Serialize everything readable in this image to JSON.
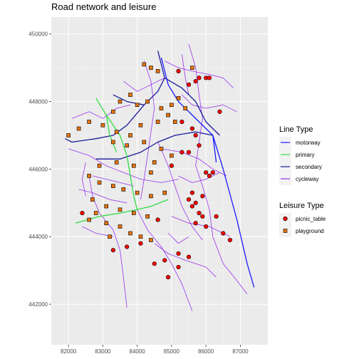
{
  "title": "Road network and leisure",
  "axes": {
    "x_ticks": [
      82000,
      83000,
      84000,
      85000,
      86000,
      87000
    ],
    "y_ticks": [
      442000,
      444000,
      446000,
      448000,
      450000
    ],
    "x_range": [
      81500,
      87800
    ],
    "y_range": [
      440800,
      450500
    ]
  },
  "legend": {
    "line_title": "Line Type",
    "line_items": [
      {
        "label": "motorway",
        "color": "#1a1aff"
      },
      {
        "label": "primary",
        "color": "#33dd44"
      },
      {
        "label": "secondary",
        "color": "#1a1a99"
      },
      {
        "label": "cycleway",
        "color": "#9933ee"
      }
    ],
    "point_title": "Leisure Type",
    "point_items": [
      {
        "label": "picnic_table",
        "color": "#ff0000",
        "shape": "circle"
      },
      {
        "label": "playground",
        "color": "#e8730c",
        "shape": "square"
      }
    ]
  },
  "chart_data": {
    "type": "map",
    "title": "Road network and leisure",
    "xlim": [
      81500,
      87800
    ],
    "ylim": [
      440800,
      450500
    ],
    "grid": true,
    "legend_position": "right",
    "lines": {
      "motorway": [
        [
          [
            84700,
            449300
          ],
          [
            84900,
            448500
          ],
          [
            85200,
            448000
          ],
          [
            85600,
            447600
          ],
          [
            86200,
            447000
          ],
          [
            86500,
            446000
          ],
          [
            86900,
            444500
          ],
          [
            87200,
            443200
          ],
          [
            87400,
            442500
          ]
        ],
        [
          [
            86200,
            447000
          ],
          [
            86300,
            446200
          ]
        ]
      ],
      "primary": [
        [
          [
            82800,
            448100
          ],
          [
            83100,
            447600
          ],
          [
            83500,
            447000
          ],
          [
            83700,
            446400
          ],
          [
            83800,
            445800
          ],
          [
            83900,
            445200
          ],
          [
            84000,
            444800
          ],
          [
            84400,
            444900
          ],
          [
            84900,
            445100
          ]
        ],
        [
          [
            84000,
            444800
          ],
          [
            83500,
            444700
          ],
          [
            82900,
            444600
          ],
          [
            82200,
            444400
          ]
        ],
        [
          [
            83100,
            447600
          ],
          [
            83200,
            447000
          ],
          [
            83400,
            446500
          ]
        ]
      ],
      "secondary": [
        [
          [
            84600,
            449500
          ],
          [
            84800,
            448700
          ],
          [
            84600,
            448300
          ],
          [
            84200,
            447900
          ],
          [
            83700,
            447300
          ],
          [
            83300,
            447000
          ],
          [
            82800,
            446900
          ],
          [
            82100,
            446800
          ],
          [
            81900,
            446900
          ]
        ],
        [
          [
            84800,
            448700
          ],
          [
            85300,
            448400
          ],
          [
            85700,
            448000
          ],
          [
            86000,
            447400
          ],
          [
            86400,
            447000
          ]
        ],
        [
          [
            82800,
            446300
          ],
          [
            83500,
            446300
          ],
          [
            84100,
            446500
          ],
          [
            84600,
            446800
          ],
          [
            85100,
            447000
          ],
          [
            85700,
            447100
          ],
          [
            86200,
            447000
          ]
        ],
        [
          [
            83300,
            448200
          ],
          [
            83700,
            448000
          ],
          [
            84200,
            447900
          ]
        ]
      ],
      "cycleway": [
        [
          [
            85500,
            449700
          ],
          [
            85700,
            449000
          ],
          [
            85800,
            448200
          ],
          [
            85900,
            447500
          ],
          [
            85800,
            446800
          ],
          [
            85700,
            446100
          ],
          [
            85900,
            445500
          ],
          [
            86100,
            444800
          ],
          [
            86200,
            444000
          ],
          [
            86500,
            443200
          ],
          [
            86900,
            442700
          ],
          [
            87200,
            442300
          ]
        ],
        [
          [
            84800,
            449200
          ],
          [
            85200,
            449000
          ],
          [
            85600,
            448900
          ],
          [
            86100,
            448800
          ],
          [
            86500,
            448700
          ],
          [
            86800,
            448400
          ]
        ],
        [
          [
            85300,
            449400
          ],
          [
            85400,
            448700
          ],
          [
            85500,
            448200
          ]
        ],
        [
          [
            84200,
            449200
          ],
          [
            84400,
            448600
          ],
          [
            84500,
            447800
          ],
          [
            84400,
            447100
          ],
          [
            84300,
            446400
          ],
          [
            84200,
            445700
          ],
          [
            84100,
            445100
          ]
        ],
        [
          [
            82100,
            447500
          ],
          [
            82600,
            447700
          ],
          [
            83000,
            447500
          ],
          [
            83400,
            447800
          ],
          [
            83800,
            447900
          ]
        ],
        [
          [
            82000,
            446600
          ],
          [
            82600,
            446400
          ],
          [
            83100,
            446100
          ],
          [
            83600,
            445900
          ],
          [
            84100,
            445700
          ],
          [
            84700,
            445600
          ],
          [
            85200,
            445700
          ]
        ],
        [
          [
            84600,
            446800
          ],
          [
            84900,
            446100
          ],
          [
            85100,
            445500
          ],
          [
            85300,
            444900
          ],
          [
            85600,
            444300
          ],
          [
            85900,
            443900
          ]
        ],
        [
          [
            82600,
            445800
          ],
          [
            82700,
            445200
          ],
          [
            82900,
            444700
          ],
          [
            83300,
            444200
          ],
          [
            83500,
            443600
          ],
          [
            83600,
            442800
          ],
          [
            83700,
            441900
          ]
        ],
        [
          [
            84000,
            444800
          ],
          [
            84300,
            444200
          ],
          [
            84700,
            443700
          ],
          [
            85000,
            443200
          ],
          [
            85300,
            442600
          ],
          [
            85600,
            441800
          ]
        ],
        [
          [
            84500,
            443800
          ],
          [
            84900,
            443500
          ],
          [
            85400,
            443300
          ],
          [
            86000,
            443100
          ],
          [
            86300,
            442800
          ]
        ],
        [
          [
            82300,
            445400
          ],
          [
            82700,
            445300
          ],
          [
            83200,
            445100
          ],
          [
            83700,
            445000
          ]
        ],
        [
          [
            82400,
            444300
          ],
          [
            82800,
            444100
          ],
          [
            83300,
            444000
          ]
        ],
        [
          [
            85000,
            444600
          ],
          [
            85500,
            444400
          ],
          [
            86100,
            444300
          ],
          [
            86700,
            444000
          ]
        ],
        [
          [
            84700,
            446600
          ],
          [
            85300,
            446500
          ],
          [
            85800,
            446300
          ],
          [
            86200,
            446000
          ],
          [
            86600,
            445800
          ]
        ],
        [
          [
            85300,
            448200
          ],
          [
            85600,
            447900
          ],
          [
            86000,
            447800
          ],
          [
            86500,
            447900
          ],
          [
            86900,
            447700
          ]
        ],
        [
          [
            83600,
            448600
          ],
          [
            84000,
            448300
          ],
          [
            84400,
            448500
          ],
          [
            84800,
            448700
          ]
        ],
        [
          [
            82700,
            445800
          ],
          [
            83100,
            445700
          ],
          [
            83500,
            445600
          ],
          [
            83900,
            445500
          ]
        ],
        [
          [
            85200,
            445800
          ],
          [
            85600,
            445600
          ],
          [
            86000,
            445700
          ],
          [
            86400,
            445900
          ]
        ],
        [
          [
            82500,
            446200
          ],
          [
            82400,
            445700
          ],
          [
            82500,
            445200
          ]
        ],
        [
          [
            84900,
            444100
          ],
          [
            85200,
            443800
          ],
          [
            85500,
            444000
          ]
        ]
      ]
    },
    "points": {
      "picnic_table": [
        [
          85200,
          448900
        ],
        [
          85800,
          448700
        ],
        [
          86000,
          448700
        ],
        [
          86100,
          448700
        ],
        [
          85500,
          448500
        ],
        [
          85700,
          448600
        ],
        [
          86400,
          447700
        ],
        [
          85300,
          447400
        ],
        [
          85600,
          447200
        ],
        [
          85700,
          447000
        ],
        [
          85300,
          446500
        ],
        [
          85500,
          446500
        ],
        [
          85800,
          446700
        ],
        [
          86000,
          445900
        ],
        [
          86100,
          445800
        ],
        [
          86200,
          445900
        ],
        [
          85600,
          445300
        ],
        [
          85500,
          445100
        ],
        [
          85700,
          445000
        ],
        [
          85600,
          444900
        ],
        [
          85800,
          444700
        ],
        [
          85900,
          444600
        ],
        [
          85700,
          444400
        ],
        [
          86000,
          444300
        ],
        [
          86300,
          444600
        ],
        [
          86500,
          444100
        ],
        [
          86700,
          443900
        ],
        [
          82400,
          444700
        ],
        [
          83300,
          443600
        ],
        [
          83700,
          443700
        ],
        [
          84100,
          443800
        ],
        [
          84800,
          443300
        ],
        [
          85200,
          443500
        ],
        [
          85500,
          443400
        ],
        [
          85200,
          443100
        ],
        [
          84500,
          443200
        ],
        [
          84900,
          442800
        ],
        [
          85900,
          445200
        ],
        [
          84600,
          444500
        ],
        [
          85000,
          446100
        ]
      ],
      "playground": [
        [
          84200,
          449100
        ],
        [
          84400,
          449000
        ],
        [
          84600,
          448900
        ],
        [
          83500,
          448000
        ],
        [
          83800,
          448200
        ],
        [
          84000,
          447900
        ],
        [
          84300,
          448000
        ],
        [
          84700,
          447800
        ],
        [
          85000,
          447900
        ],
        [
          85200,
          448100
        ],
        [
          84900,
          447600
        ],
        [
          85100,
          447400
        ],
        [
          84600,
          447400
        ],
        [
          84100,
          447300
        ],
        [
          83800,
          447000
        ],
        [
          83400,
          447100
        ],
        [
          83000,
          447300
        ],
        [
          82600,
          447400
        ],
        [
          82300,
          447200
        ],
        [
          82000,
          447000
        ],
        [
          83300,
          446800
        ],
        [
          83700,
          446700
        ],
        [
          84200,
          446800
        ],
        [
          84700,
          446600
        ],
        [
          85000,
          446400
        ],
        [
          84500,
          446200
        ],
        [
          83900,
          446100
        ],
        [
          83400,
          446200
        ],
        [
          82900,
          446100
        ],
        [
          82600,
          445800
        ],
        [
          82900,
          445600
        ],
        [
          83300,
          445500
        ],
        [
          83600,
          445400
        ],
        [
          84000,
          445300
        ],
        [
          84400,
          445200
        ],
        [
          84800,
          445300
        ],
        [
          82700,
          445100
        ],
        [
          83100,
          444900
        ],
        [
          83500,
          444800
        ],
        [
          83900,
          444700
        ],
        [
          84300,
          444600
        ],
        [
          82800,
          444700
        ],
        [
          83100,
          444400
        ],
        [
          83500,
          444300
        ],
        [
          83800,
          444100
        ],
        [
          84100,
          444000
        ],
        [
          84400,
          443900
        ],
        [
          83200,
          444000
        ],
        [
          82600,
          444500
        ],
        [
          85600,
          449000
        ],
        [
          85400,
          447800
        ],
        [
          84400,
          445900
        ],
        [
          83300,
          447700
        ]
      ]
    }
  }
}
